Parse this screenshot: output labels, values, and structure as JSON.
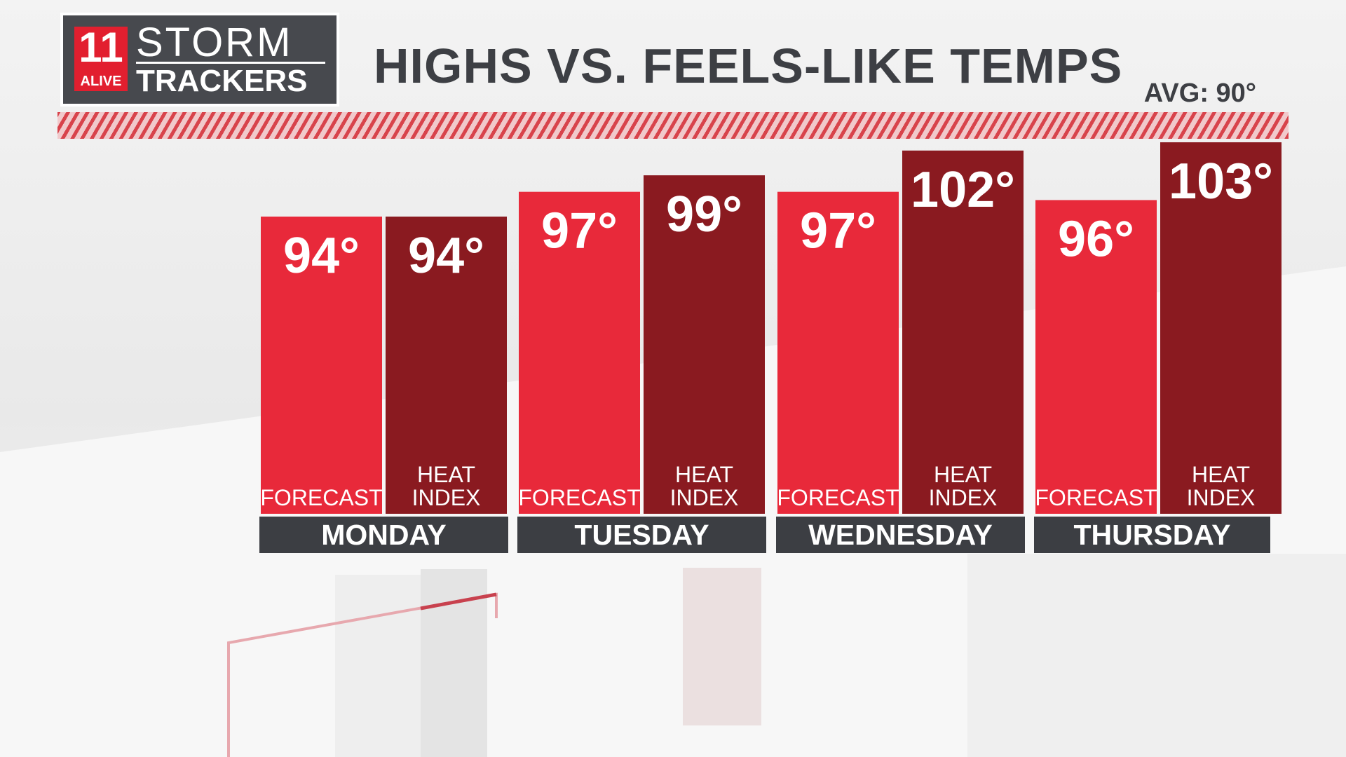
{
  "header": {
    "logo_number": "11",
    "logo_sub": "ALIVE",
    "logo_storm": "STORM",
    "logo_trackers": "TRACKERS",
    "title": "HIGHS VS. FEELS-LIKE TEMPS",
    "avg": "AVG: 90°"
  },
  "colors": {
    "forecast": "#e8293a",
    "heat_index": "#8a1a20",
    "day_bar": "#3c3e43"
  },
  "chart_data": {
    "type": "bar",
    "title": "HIGHS VS. FEELS-LIKE TEMPS",
    "categories": [
      "MONDAY",
      "TUESDAY",
      "WEDNESDAY",
      "THURSDAY"
    ],
    "series": [
      {
        "name": "FORECAST",
        "values": [
          94,
          97,
          97,
          96
        ],
        "labels": [
          "94°",
          "97°",
          "97°",
          "96°"
        ]
      },
      {
        "name": "HEAT INDEX",
        "values": [
          94,
          99,
          102,
          103
        ],
        "labels": [
          "94°",
          "99°",
          "102°",
          "103°"
        ]
      }
    ],
    "series_label_lines": [
      [
        "FORECAST"
      ],
      [
        "HEAT",
        "INDEX"
      ]
    ],
    "ylim": [
      58,
      103
    ],
    "grid": false,
    "legend": "none"
  }
}
